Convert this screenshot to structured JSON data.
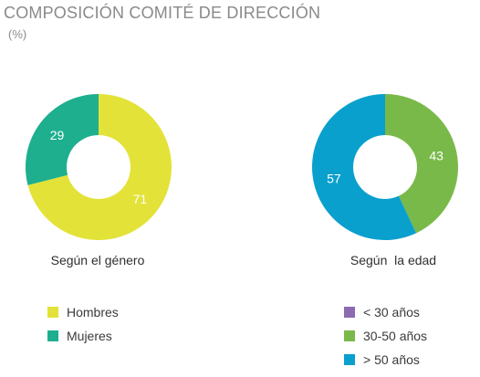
{
  "header": {
    "title": "COMPOSICIÓN COMITÉ DE DIRECCIÓN",
    "unit": "(%)"
  },
  "chart_data": [
    {
      "type": "pie",
      "title": "Según el género",
      "categories": [
        "Hombres",
        "Mujeres"
      ],
      "values": [
        71,
        29
      ],
      "colors": [
        "#e3e238",
        "#1daf8e"
      ]
    },
    {
      "type": "pie",
      "title": "Según  la edad",
      "categories": [
        "< 30 años",
        "30-50 años",
        "> 50 años"
      ],
      "values": [
        0,
        43,
        57
      ],
      "colors": [
        "#8c6bb1",
        "#79b94a",
        "#0aa0cd"
      ]
    }
  ]
}
